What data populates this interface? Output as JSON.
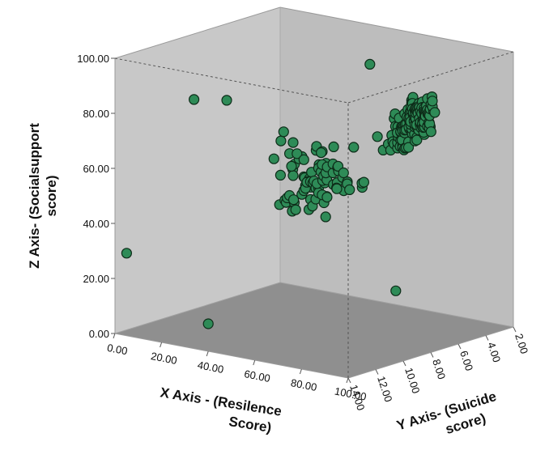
{
  "chart_data": {
    "type": "scatter",
    "dimensions": 3,
    "title": "",
    "xlabel": [
      "X Axis - (Resilence",
      "Score)"
    ],
    "ylabel": [
      "Y Axis- (Suicide",
      "score)"
    ],
    "zlabel": [
      "Z Axis- (Socialsupport",
      "score)"
    ],
    "xlim": [
      0,
      100
    ],
    "ylim": [
      2,
      14
    ],
    "zlim": [
      0,
      100
    ],
    "x_ticks": [
      "0.00",
      "20.00",
      "40.00",
      "60.00",
      "80.00",
      "100.00"
    ],
    "y_ticks": [
      "2.00",
      "4.00",
      "6.00",
      "8.00",
      "10.00",
      "12.00",
      "14.00"
    ],
    "z_ticks": [
      "0.00",
      "20.00",
      "40.00",
      "60.00",
      "80.00",
      "100.00"
    ],
    "grid": false,
    "marker_color": "#2e8b57",
    "marker_edge_color": "#0d2b18",
    "panel_colors": {
      "back": "#c8c8c8",
      "side": "#bdbdbd",
      "floor": "#8f8f8f"
    },
    "points_description": "Each point is [x: resilience score, y: suicide score, z: social support score]; values estimated from the projected positions.",
    "points": []
  }
}
